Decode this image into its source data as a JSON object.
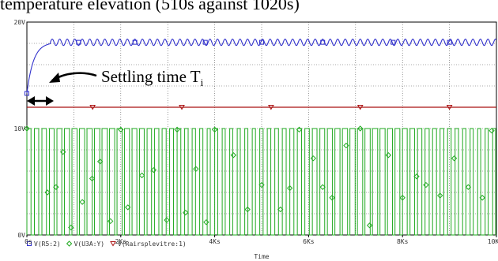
{
  "caption": "temperature elevation (510s against 1020s)",
  "annotation": {
    "text": "Settling time T",
    "subscript": "i"
  },
  "chart_data": {
    "type": "line",
    "xlabel": "Time",
    "xlim": [
      0,
      10000
    ],
    "ylim": [
      0,
      20
    ],
    "x_ticks": [
      "0s",
      "2Ks",
      "4Ks",
      "6Ks",
      "8Ks",
      "10K"
    ],
    "y_ticks": [
      "0V",
      "10V",
      "20V"
    ],
    "series": [
      {
        "name": "V(R5:2)",
        "color": "#3333cc",
        "marker": "square",
        "x": [
          0,
          100,
          300,
          500,
          700,
          900,
          1100,
          1300,
          1600,
          2000,
          3000,
          4000,
          5000,
          6000,
          7000,
          8000,
          9000,
          10000
        ],
        "y": [
          13.3,
          15.5,
          17.3,
          18.0,
          18.1,
          18.2,
          18.1,
          18.2,
          18.1,
          18.1,
          18.1,
          18.1,
          18.1,
          18.1,
          18.1,
          18.1,
          18.1,
          18.1
        ],
        "ripple_center": 18.1,
        "ripple_amplitude": 0.3,
        "ripple_period": 160
      },
      {
        "name": "V(U3A:Y)",
        "color": "#22aa22",
        "marker": "diamond",
        "high": 10,
        "low": 0,
        "type": "pwm",
        "period": 160
      },
      {
        "name": "V(Rairsplevitre:1)",
        "color": "#aa1111",
        "marker": "triangle-down",
        "x": [
          0,
          10000
        ],
        "y": [
          12.0,
          12.0
        ]
      }
    ]
  }
}
